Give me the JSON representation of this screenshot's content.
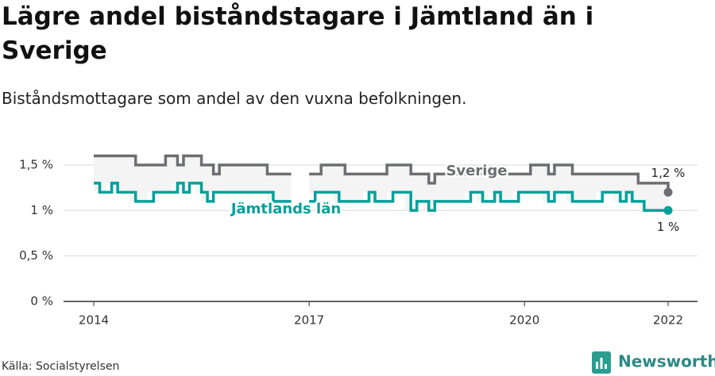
{
  "chart_data": {
    "type": "line",
    "title": "Lägre andel biståndstagare i Jämtland än i Sverige",
    "subtitle": "Biståndsmottagare som andel av den vuxna befolkningen.",
    "source": "Källa: Socialstyrelsen",
    "brand": "Newsworthy",
    "categories": [
      "2014",
      null,
      null,
      null,
      null,
      null,
      null,
      null,
      null,
      null,
      null,
      null,
      null,
      null,
      null,
      null,
      null,
      null,
      null,
      null,
      null,
      null,
      null,
      null,
      null,
      null,
      null,
      null,
      null,
      null,
      null,
      null,
      null,
      null,
      null,
      null,
      "2017",
      null,
      null,
      null,
      null,
      null,
      null,
      null,
      null,
      null,
      null,
      null,
      null,
      null,
      null,
      null,
      null,
      null,
      null,
      null,
      null,
      null,
      null,
      null,
      null,
      null,
      null,
      null,
      null,
      null,
      null,
      null,
      null,
      null,
      null,
      null,
      "2020",
      null,
      null,
      null,
      null,
      null,
      null,
      null,
      null,
      null,
      null,
      null,
      null,
      null,
      null,
      null,
      null,
      null,
      null,
      null,
      null,
      null,
      null,
      null,
      "2022"
    ],
    "series": [
      {
        "name": "Sverige",
        "color": "#6d6e71",
        "values": [
          1.6,
          1.6,
          1.6,
          1.6,
          1.6,
          1.6,
          1.6,
          1.5,
          1.5,
          1.5,
          1.5,
          1.5,
          1.6,
          1.6,
          1.5,
          1.6,
          1.6,
          1.6,
          1.5,
          1.5,
          1.4,
          1.5,
          1.5,
          1.5,
          1.5,
          1.5,
          1.5,
          1.5,
          1.5,
          1.4,
          1.4,
          1.4,
          1.4,
          1.4,
          null,
          null,
          1.4,
          1.4,
          1.5,
          1.5,
          1.5,
          1.5,
          1.4,
          1.4,
          1.4,
          1.4,
          1.4,
          1.4,
          1.4,
          1.5,
          1.5,
          1.5,
          1.5,
          1.4,
          1.4,
          1.4,
          1.3,
          1.4,
          1.4,
          1.4,
          1.4,
          1.4,
          1.4,
          1.4,
          1.4,
          1.4,
          1.4,
          1.4,
          1.4,
          1.4,
          1.4,
          1.4,
          1.4,
          1.5,
          1.5,
          1.5,
          1.4,
          1.5,
          1.5,
          1.5,
          1.4,
          1.4,
          1.4,
          1.4,
          1.4,
          1.4,
          1.4,
          1.4,
          1.4,
          1.4,
          1.4,
          1.3,
          1.3,
          1.3,
          1.3,
          1.3,
          1.2
        ],
        "value_labels": [
          null,
          null,
          null,
          null,
          null,
          null,
          null,
          null,
          null,
          null,
          null,
          null,
          null,
          null,
          null,
          null,
          null,
          null,
          null,
          null,
          null,
          null,
          null,
          null,
          null,
          null,
          null,
          null,
          null,
          null,
          null,
          null,
          null,
          null,
          null,
          null,
          null,
          null,
          null,
          null,
          null,
          null,
          null,
          null,
          null,
          null,
          null,
          null,
          null,
          null,
          null,
          null,
          null,
          null,
          null,
          null,
          null,
          null,
          null,
          null,
          null,
          null,
          null,
          null,
          null,
          null,
          null,
          null,
          null,
          null,
          null,
          null,
          null,
          null,
          null,
          null,
          null,
          null,
          null,
          null,
          null,
          null,
          null,
          null,
          null,
          null,
          null,
          null,
          null,
          null,
          null,
          null,
          null,
          null,
          null,
          null,
          "1,2 %"
        ]
      },
      {
        "name": "Jämtlands län",
        "color": "#00a19a",
        "values": [
          1.3,
          1.2,
          1.2,
          1.3,
          1.2,
          1.2,
          1.2,
          1.1,
          1.1,
          1.1,
          1.2,
          1.2,
          1.2,
          1.2,
          1.3,
          1.2,
          1.3,
          1.3,
          1.2,
          1.1,
          1.2,
          1.2,
          1.2,
          1.2,
          1.2,
          1.2,
          1.2,
          1.2,
          1.2,
          1.2,
          1.1,
          1.1,
          1.1,
          1.1,
          null,
          null,
          1.1,
          1.2,
          1.2,
          1.2,
          1.2,
          1.1,
          1.1,
          1.1,
          1.1,
          1.1,
          1.2,
          1.1,
          1.1,
          1.1,
          1.2,
          1.2,
          1.2,
          1.0,
          1.1,
          1.1,
          1.0,
          1.1,
          1.1,
          1.1,
          1.1,
          1.1,
          1.1,
          1.2,
          1.2,
          1.1,
          1.1,
          1.2,
          1.1,
          1.1,
          1.1,
          1.2,
          1.2,
          1.2,
          1.2,
          1.2,
          1.1,
          1.2,
          1.2,
          1.2,
          1.1,
          1.1,
          1.1,
          1.1,
          1.1,
          1.2,
          1.2,
          1.2,
          1.1,
          1.2,
          1.1,
          1.1,
          1.0,
          1.0,
          1.0,
          1.0,
          1.0
        ],
        "value_labels": [
          null,
          null,
          null,
          null,
          null,
          null,
          null,
          null,
          null,
          null,
          null,
          null,
          null,
          null,
          null,
          null,
          null,
          null,
          null,
          null,
          null,
          null,
          null,
          null,
          null,
          null,
          null,
          null,
          null,
          null,
          null,
          null,
          null,
          null,
          null,
          null,
          null,
          null,
          null,
          null,
          null,
          null,
          null,
          null,
          null,
          null,
          null,
          null,
          null,
          null,
          null,
          null,
          null,
          null,
          null,
          null,
          null,
          null,
          null,
          null,
          null,
          null,
          null,
          null,
          null,
          null,
          null,
          null,
          null,
          null,
          null,
          null,
          null,
          null,
          null,
          null,
          null,
          null,
          null,
          null,
          null,
          null,
          null,
          null,
          null,
          null,
          null,
          null,
          null,
          null,
          null,
          null,
          null,
          null,
          null,
          null,
          "1 %"
        ]
      }
    ],
    "ylim": [
      0,
      1.7
    ],
    "yticks": [
      {
        "value": 0,
        "label": "0 %"
      },
      {
        "value": 0.5,
        "label": "0,5 %"
      },
      {
        "value": 1,
        "label": "1 %"
      },
      {
        "value": 1.5,
        "label": "1,5 %"
      }
    ],
    "grid": true
  }
}
